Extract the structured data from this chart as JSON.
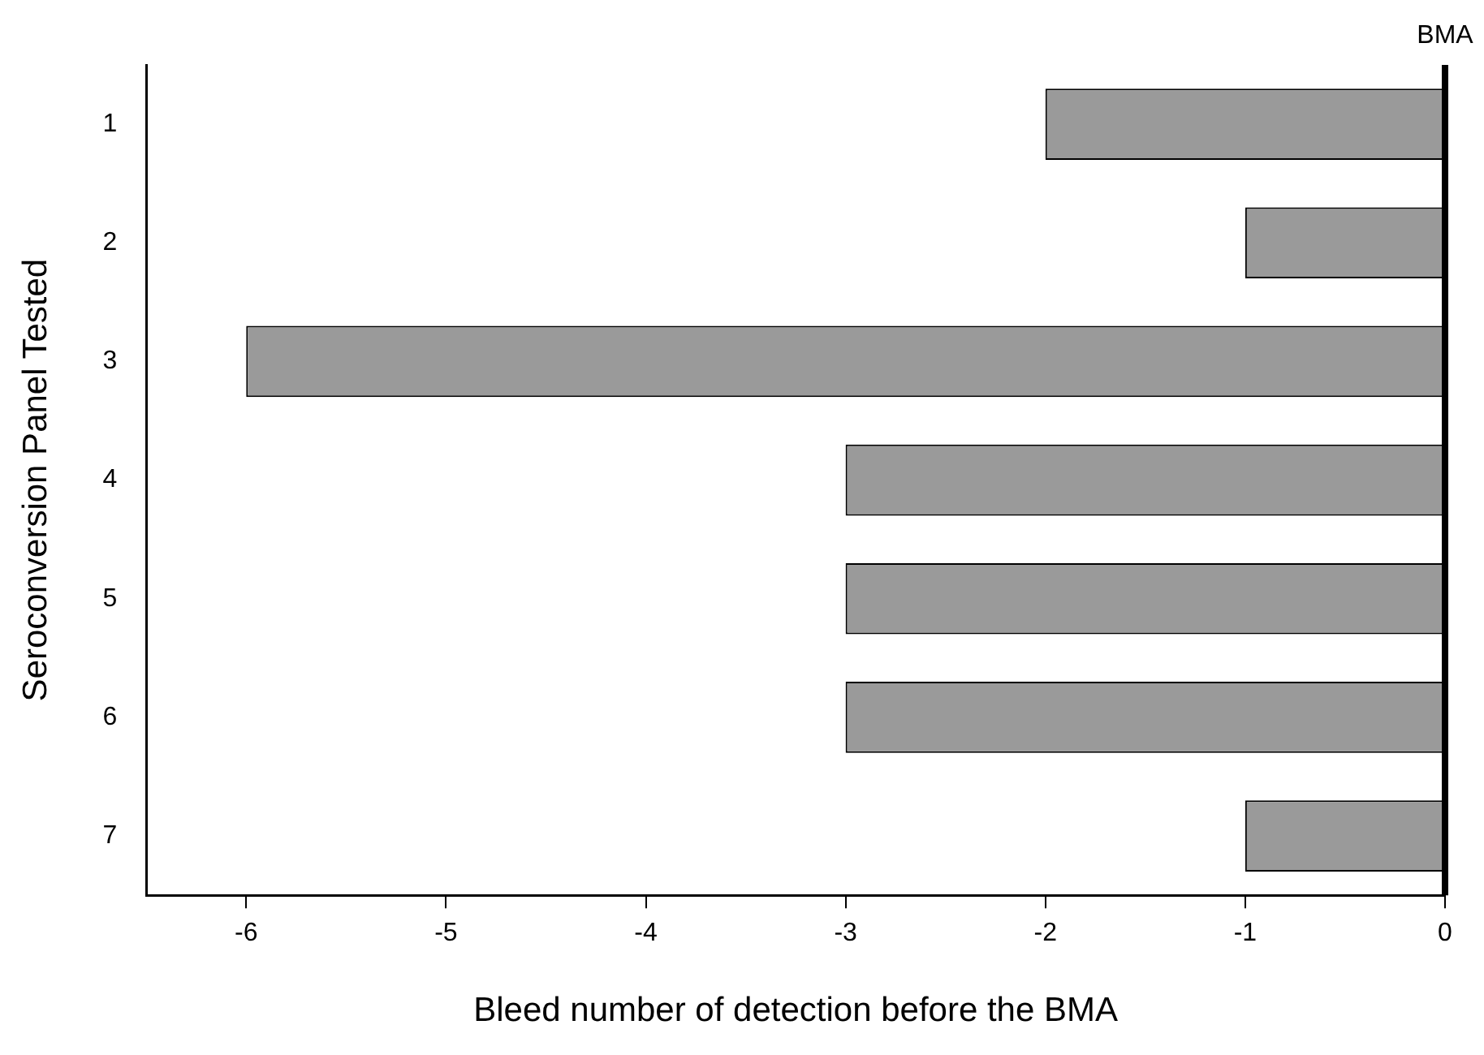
{
  "chart_data": {
    "type": "bar",
    "orientation": "horizontal",
    "xlabel": "Bleed number of detection before the BMA",
    "ylabel": "Seroconversion Panel Tested",
    "categories": [
      "1",
      "2",
      "3",
      "4",
      "5",
      "6",
      "7"
    ],
    "values": [
      -2,
      -1,
      -6,
      -3,
      -3,
      -3,
      -1
    ],
    "color": "#9a9a9a",
    "xlim": [
      -6.5,
      0
    ],
    "xticks": [
      -6,
      -5,
      -4,
      -3,
      -2,
      -1,
      0
    ],
    "grid": false,
    "ref_lines": [
      {
        "axis": "x",
        "value": 0,
        "label": "BMA",
        "color": "#000000"
      }
    ]
  }
}
